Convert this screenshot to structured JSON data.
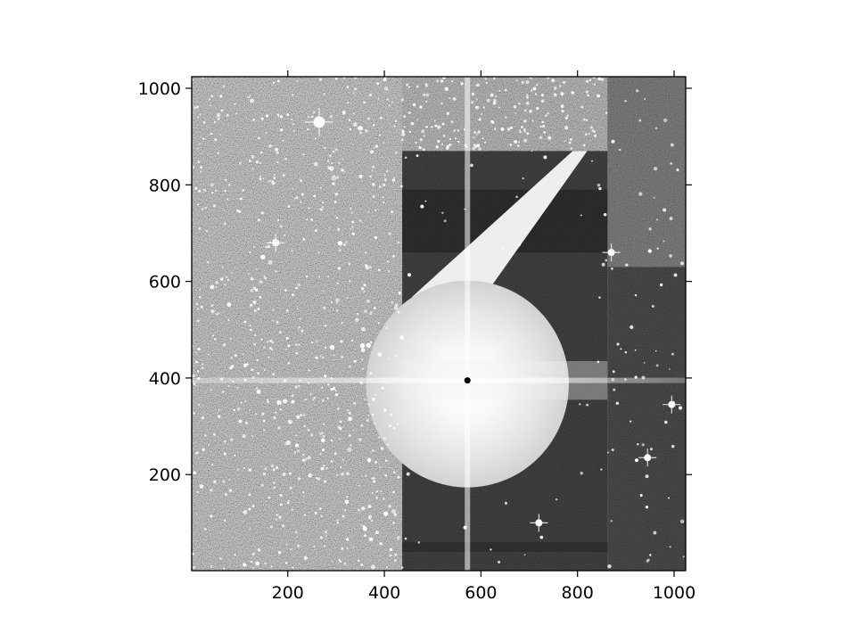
{
  "chart_data": {
    "type": "heatmap",
    "colormap": "gray",
    "title": "",
    "xlabel": "",
    "ylabel": "",
    "xlim": [
      1,
      1024
    ],
    "ylim": [
      1,
      1024
    ],
    "x_ticks": [
      200,
      400,
      600,
      800,
      1000
    ],
    "y_ticks": [
      200,
      400,
      600,
      800,
      1000
    ],
    "x_tick_labels": [
      "200",
      "400",
      "600",
      "800",
      "1000"
    ],
    "y_tick_labels": [
      "200",
      "400",
      "600",
      "800",
      "1000"
    ],
    "grid": false,
    "features": {
      "bright_source_center": [
        572,
        395
      ],
      "bright_halo_radius": 210,
      "dark_region_x": [
        437,
        862
      ],
      "dark_region_y_top": 870,
      "right_panel_x": [
        862,
        1024
      ],
      "right_panel_split_y": 630,
      "bright_star_positions": [
        [
          265,
          930
        ],
        [
          175,
          680
        ],
        [
          720,
          100
        ],
        [
          945,
          235
        ],
        [
          870,
          660
        ],
        [
          995,
          345
        ]
      ]
    }
  }
}
